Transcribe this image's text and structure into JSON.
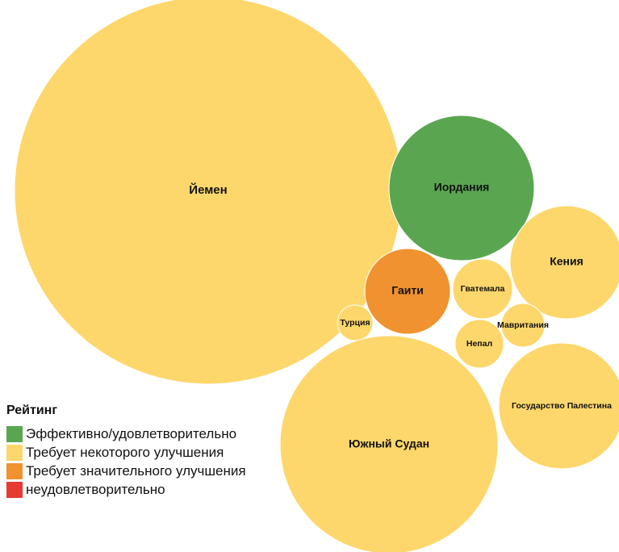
{
  "chart_data": {
    "type": "bubble",
    "legend_title": "Рейтинг",
    "legend_position": "bottom-left",
    "categories": [
      {
        "key": "effective",
        "label": "Эффективно/удовлетворительно",
        "color": "#5aa650"
      },
      {
        "key": "some",
        "label": "Требует некоторого улучшения",
        "color": "#fdd76b"
      },
      {
        "key": "significant",
        "label": "Требует значительного улучшения",
        "color": "#f0922f"
      },
      {
        "key": "unsatisfactory",
        "label": "неудовлетворительно",
        "color": "#e53b32"
      }
    ],
    "bubbles": [
      {
        "label": "Йемен",
        "category": "some",
        "value": 57600
      },
      {
        "label": "Иордания",
        "category": "effective",
        "value": 8100
      },
      {
        "label": "Кения",
        "category": "some",
        "value": 4900
      },
      {
        "label": "Гаити",
        "category": "significant",
        "value": 2809
      },
      {
        "label": "Гватемала",
        "category": "some",
        "value": 1369
      },
      {
        "label": "Турция",
        "category": "some",
        "value": 484
      },
      {
        "label": "Мавритания",
        "category": "some",
        "value": 729
      },
      {
        "label": "Непал",
        "category": "some",
        "value": 900
      },
      {
        "label": "Государство Палестина",
        "category": "some",
        "value": 6084
      },
      {
        "label": "Южный Судан",
        "category": "some",
        "value": 18225
      }
    ]
  }
}
